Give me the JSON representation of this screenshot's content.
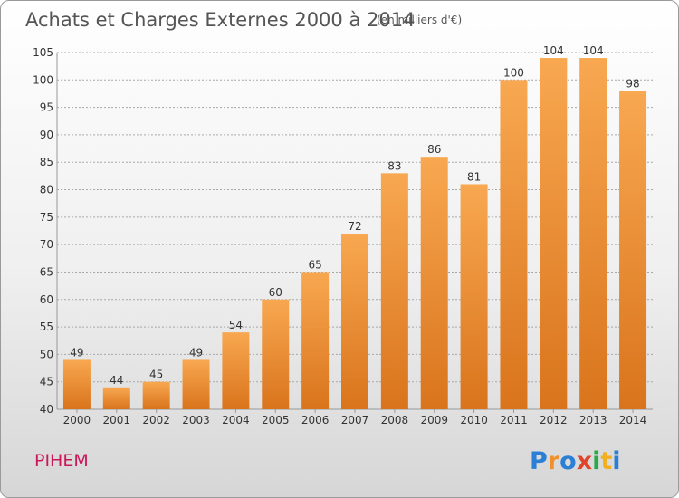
{
  "chart_data": {
    "type": "bar",
    "title": "Achats et Charges Externes 2000 à 2014",
    "subtitle": "(en milliers d'€)",
    "categories": [
      "2000",
      "2001",
      "2002",
      "2003",
      "2004",
      "2005",
      "2006",
      "2007",
      "2008",
      "2009",
      "2010",
      "2011",
      "2012",
      "2013",
      "2014"
    ],
    "values": [
      49,
      44,
      45,
      49,
      54,
      60,
      65,
      72,
      83,
      86,
      81,
      100,
      104,
      104,
      98
    ],
    "ylim": [
      40,
      105
    ],
    "yticks": [
      40,
      45,
      50,
      55,
      60,
      65,
      70,
      75,
      80,
      85,
      90,
      95,
      100,
      105
    ],
    "grid": true,
    "bar_color": "#f0913a"
  },
  "commune": "PIHEM",
  "logo": {
    "letters": [
      "P",
      "r",
      "o",
      "x",
      "i",
      "t",
      "i"
    ],
    "colors": [
      "#2b7fd4",
      "#f0912e",
      "#2b7fd4",
      "#e0442a",
      "#2ca84a",
      "#f0b020",
      "#2b7fd4"
    ]
  }
}
